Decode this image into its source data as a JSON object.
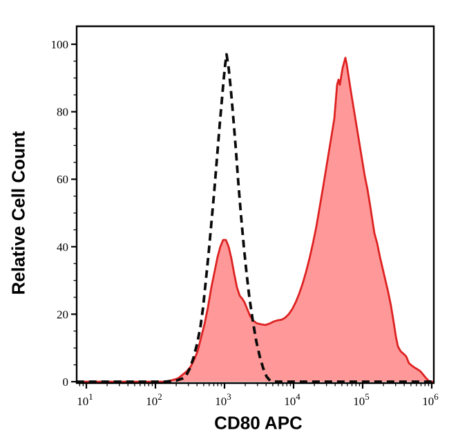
{
  "figure": {
    "background_color": "#ffffff",
    "frame_color": "#000000"
  },
  "chart_data": {
    "type": "area",
    "title": "",
    "xlabel": "CD80 APC",
    "ylabel": "Relative Cell Count",
    "x_axis": {
      "scale": "log",
      "range_log10": [
        0.86,
        6.03
      ],
      "major_ticks": [
        10,
        100,
        1000,
        10000,
        100000,
        1000000
      ],
      "tick_label_base": "10",
      "tick_label_exponents": [
        "1",
        "2",
        "3",
        "4",
        "5",
        "6"
      ],
      "minor_ticks": "log-decade-subdivisions"
    },
    "y_axis": {
      "range": [
        0,
        105
      ],
      "major_ticks": [
        0,
        20,
        40,
        60,
        80,
        100
      ],
      "minor_tick_step": 5
    },
    "grid": false,
    "legend": "none",
    "series": [
      {
        "id": "red-filled",
        "line_style": "solid",
        "line_color": "#de2121",
        "line_width": 2.8,
        "fill": "#ff9999",
        "points": [
          [
            7.2,
            0
          ],
          [
            141,
            0
          ],
          [
            178,
            0.5
          ],
          [
            214,
            1
          ],
          [
            245,
            2
          ],
          [
            282,
            3
          ],
          [
            324,
            4.5
          ],
          [
            363,
            6.5
          ],
          [
            407,
            9
          ],
          [
            457,
            13
          ],
          [
            513,
            17
          ],
          [
            575,
            22
          ],
          [
            646,
            28
          ],
          [
            724,
            33
          ],
          [
            794,
            37
          ],
          [
            871,
            40
          ],
          [
            955,
            42
          ],
          [
            1047,
            42
          ],
          [
            1148,
            40
          ],
          [
            1259,
            36.5
          ],
          [
            1380,
            32
          ],
          [
            1514,
            28
          ],
          [
            1660,
            25.5
          ],
          [
            1820,
            24.5
          ],
          [
            1950,
            23.5
          ],
          [
            2138,
            21.5
          ],
          [
            2344,
            19.5
          ],
          [
            2630,
            18
          ],
          [
            2951,
            17.3
          ],
          [
            3388,
            17
          ],
          [
            3890,
            16.8
          ],
          [
            4467,
            17.2
          ],
          [
            5129,
            17.8
          ],
          [
            5888,
            18.2
          ],
          [
            6761,
            18.4
          ],
          [
            7586,
            19
          ],
          [
            8511,
            20
          ],
          [
            9550,
            21.5
          ],
          [
            10715,
            23.5
          ],
          [
            12023,
            26
          ],
          [
            13490,
            29
          ],
          [
            15136,
            32.5
          ],
          [
            16982,
            36.5
          ],
          [
            19055,
            41
          ],
          [
            21380,
            46
          ],
          [
            23988,
            52
          ],
          [
            26915,
            58
          ],
          [
            29512,
            63
          ],
          [
            32359,
            68
          ],
          [
            35481,
            73
          ],
          [
            38905,
            78
          ],
          [
            40738,
            83
          ],
          [
            42658,
            88
          ],
          [
            44668,
            89.5
          ],
          [
            46774,
            88
          ],
          [
            48978,
            90.5
          ],
          [
            51286,
            93
          ],
          [
            56234,
            96
          ],
          [
            58884,
            94
          ],
          [
            63096,
            90
          ],
          [
            67608,
            86
          ],
          [
            74131,
            81
          ],
          [
            81283,
            76
          ],
          [
            89125,
            71
          ],
          [
            97724,
            66
          ],
          [
            107152,
            61
          ],
          [
            117490,
            57
          ],
          [
            128825,
            52
          ],
          [
            138038,
            48
          ],
          [
            147911,
            44
          ],
          [
            162181,
            41
          ],
          [
            177828,
            37
          ],
          [
            194984,
            33.5
          ],
          [
            213796,
            30
          ],
          [
            234423,
            26.5
          ],
          [
            257040,
            22.5
          ],
          [
            281838,
            17.5
          ],
          [
            302000,
            13.5
          ],
          [
            323594,
            10.5
          ],
          [
            354813,
            9
          ],
          [
            389045,
            8.3
          ],
          [
            426580,
            7.5
          ],
          [
            467735,
            5.5
          ],
          [
            512861,
            4.8
          ],
          [
            562341,
            4.2
          ],
          [
            630957,
            3.6
          ],
          [
            691831,
            3
          ],
          [
            758578,
            2
          ],
          [
            831764,
            1
          ],
          [
            912011,
            0.2
          ],
          [
            1000000,
            0
          ],
          [
            1071519,
            0
          ]
        ]
      },
      {
        "id": "dashed-black",
        "line_style": "dashed",
        "line_color": "#0a0a0a",
        "line_width": 3.8,
        "fill": "none",
        "points": [
          [
            7.2,
            0
          ],
          [
            135,
            0
          ],
          [
            200,
            0.3
          ],
          [
            251,
            1
          ],
          [
            282,
            2
          ],
          [
            316,
            4
          ],
          [
            355,
            7
          ],
          [
            398,
            11
          ],
          [
            447,
            16
          ],
          [
            490,
            22
          ],
          [
            537,
            30
          ],
          [
            589,
            38
          ],
          [
            646,
            47
          ],
          [
            708,
            56
          ],
          [
            776,
            66
          ],
          [
            851,
            76
          ],
          [
            912,
            83
          ],
          [
            977,
            90
          ],
          [
            1023,
            94
          ],
          [
            1072,
            97
          ],
          [
            1148,
            93
          ],
          [
            1230,
            87
          ],
          [
            1318,
            80
          ],
          [
            1445,
            70
          ],
          [
            1585,
            59
          ],
          [
            1738,
            49
          ],
          [
            1905,
            40
          ],
          [
            2089,
            32
          ],
          [
            2291,
            25
          ],
          [
            2570,
            18
          ],
          [
            2884,
            12
          ],
          [
            3236,
            7.5
          ],
          [
            3631,
            4
          ],
          [
            4074,
            1.5
          ],
          [
            4571,
            0.3
          ],
          [
            5623,
            0
          ],
          [
            1071519,
            0
          ]
        ]
      }
    ]
  }
}
